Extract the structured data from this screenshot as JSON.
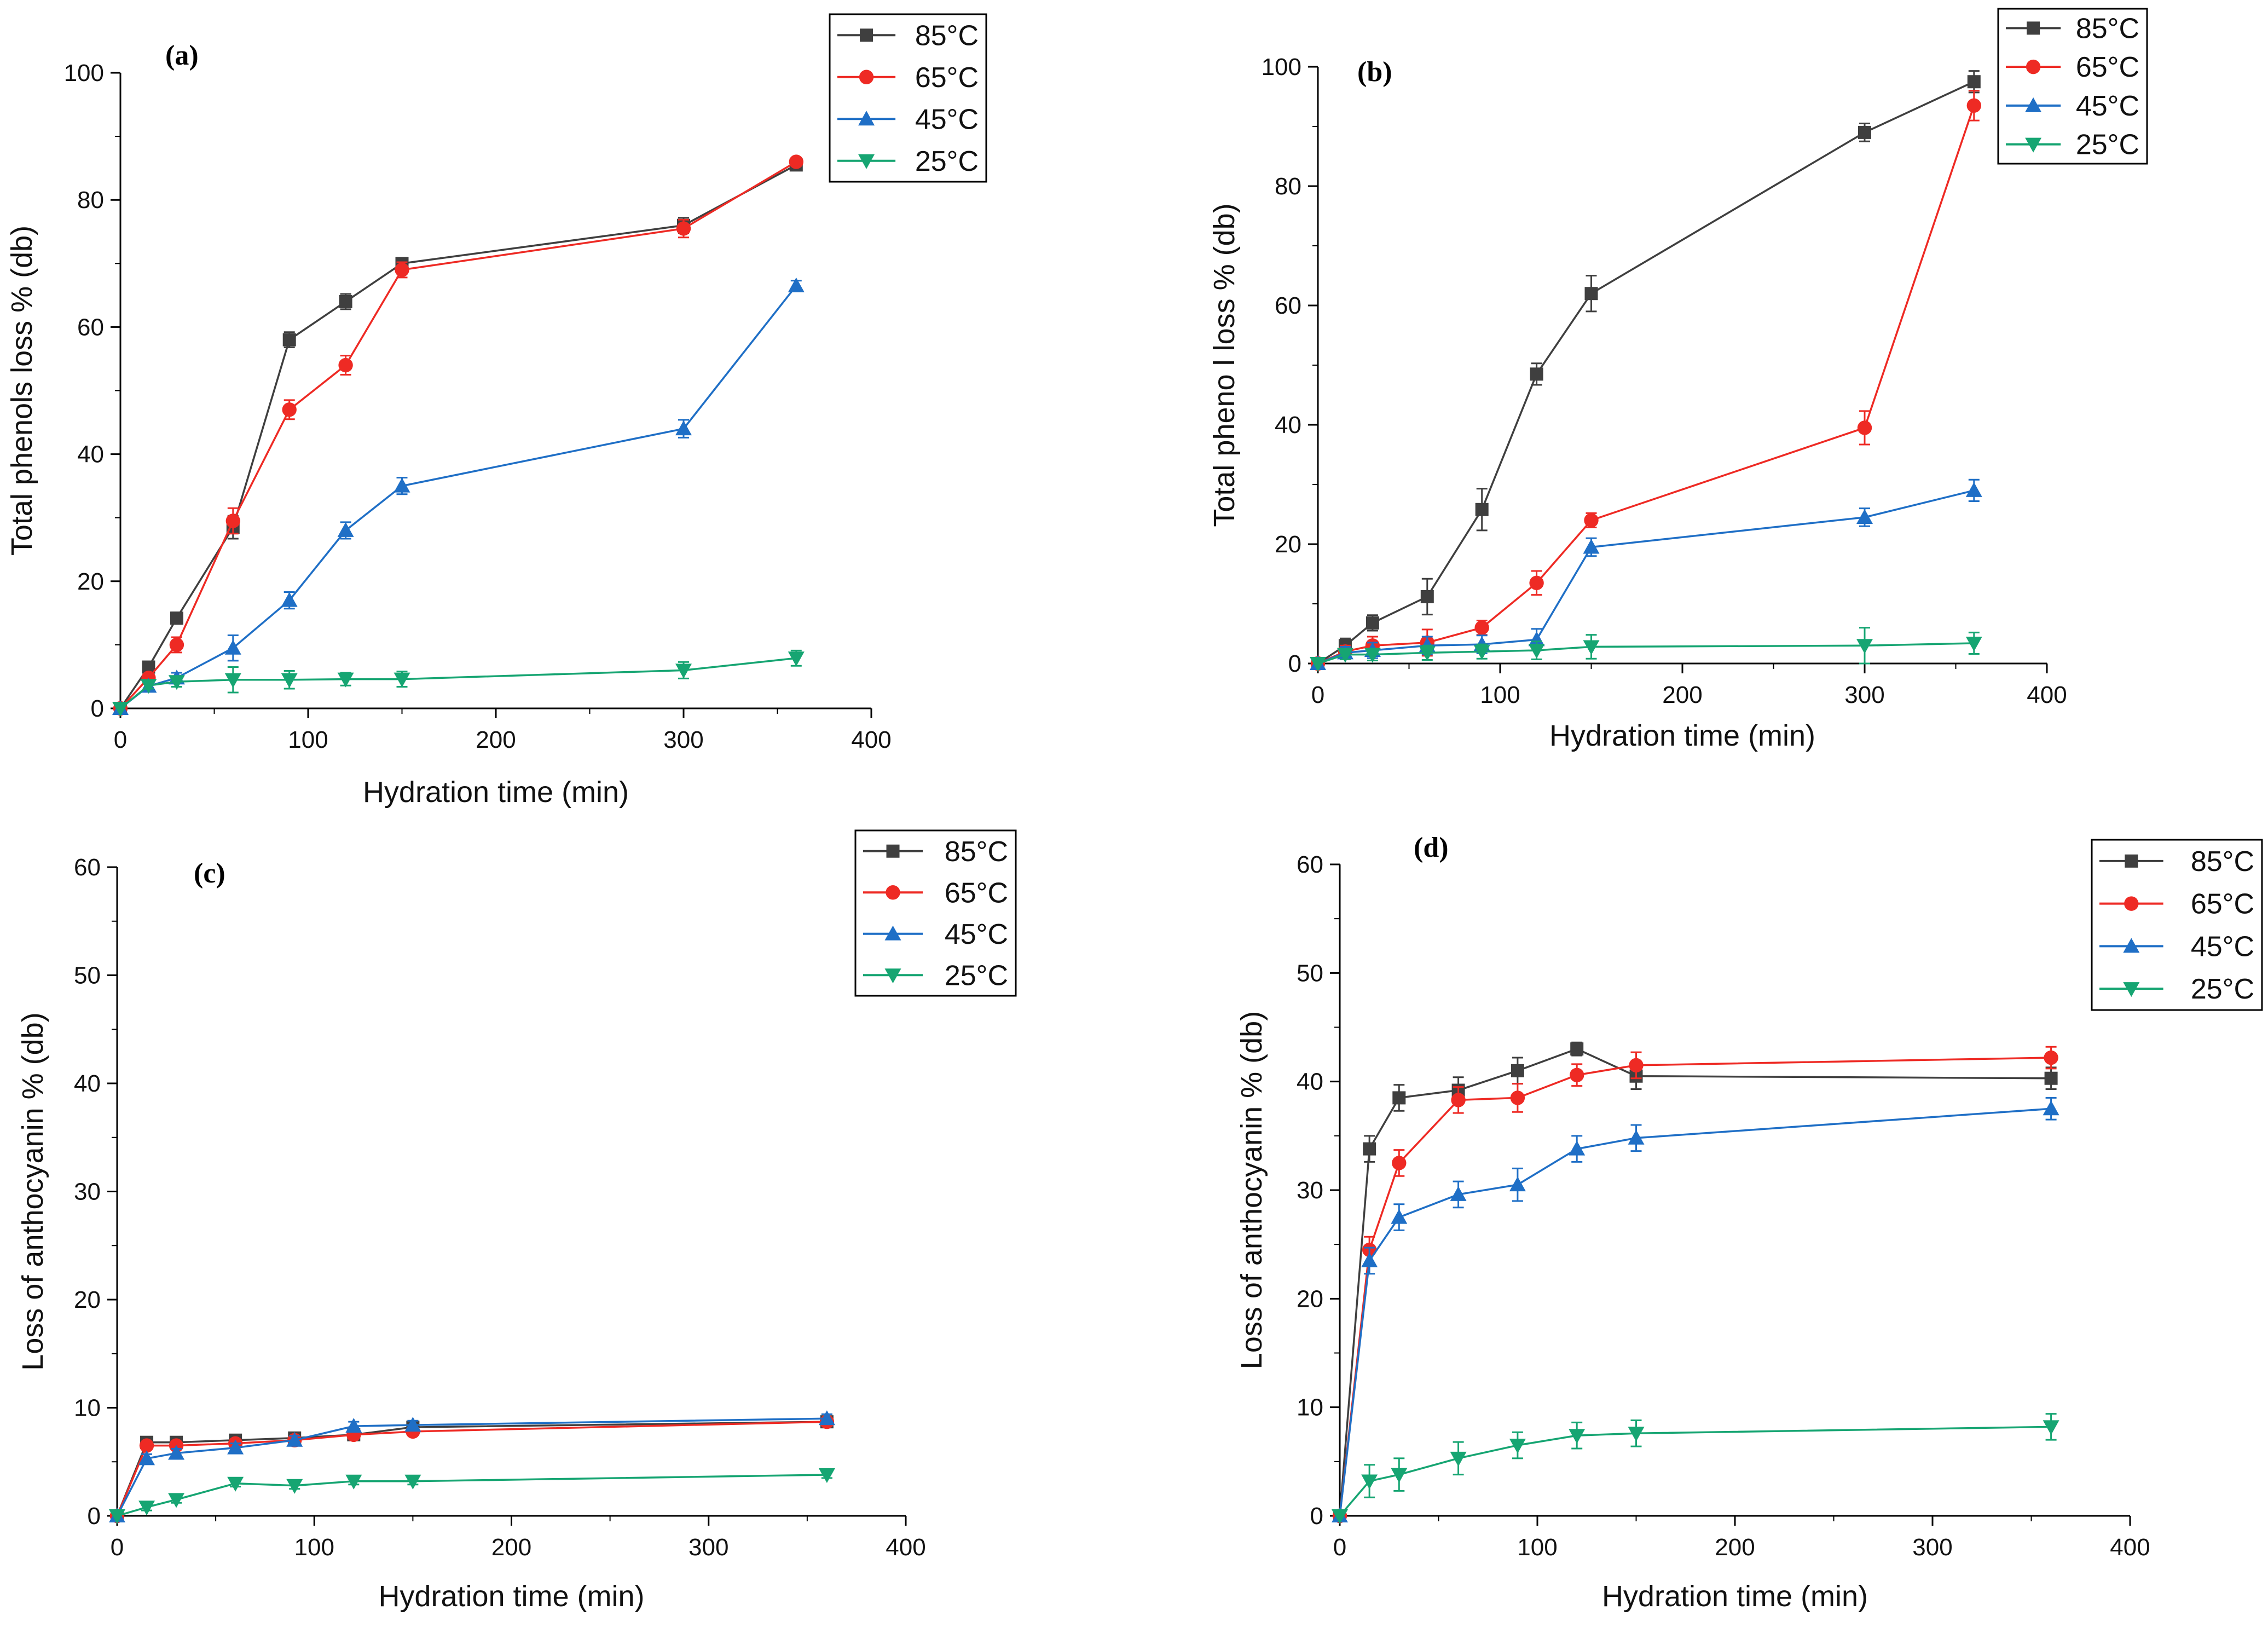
{
  "colors": {
    "85": "#3f3f3f",
    "65": "#ee2a24",
    "45": "#1f6fc6",
    "25": "#16a572",
    "axis": "#000000"
  },
  "chart_data": [
    {
      "panel": "(a)",
      "type": "line",
      "xlabel": "Hydration time (min)",
      "ylabel": "Total phenols loss % (db)",
      "xlim": [
        0,
        400
      ],
      "ylim": [
        0,
        100
      ],
      "xticks": [
        "0",
        "100",
        "200",
        "300",
        "400"
      ],
      "yticks": [
        "0",
        "20",
        "40",
        "60",
        "80",
        "100"
      ],
      "legend_position": "top-right",
      "series": [
        {
          "name": "85°C",
          "marker": "square",
          "color": "#3f3f3f",
          "x": [
            0,
            15,
            30,
            60,
            90,
            120,
            150,
            300,
            360
          ],
          "y": [
            0,
            6.5,
            14.2,
            28.5,
            58.0,
            64.0,
            70.0,
            76.0,
            85.5
          ],
          "err": [
            0,
            0.8,
            0.9,
            1.8,
            1.2,
            1.2,
            0.8,
            1.2,
            0.6
          ]
        },
        {
          "name": "65°C",
          "marker": "circle",
          "color": "#ee2a24",
          "x": [
            0,
            15,
            30,
            60,
            90,
            120,
            150,
            300,
            360
          ],
          "y": [
            0,
            4.8,
            10.0,
            29.5,
            47.0,
            54.0,
            69.0,
            75.5,
            86.0
          ],
          "err": [
            0,
            0.6,
            1.2,
            2.0,
            1.5,
            1.5,
            1.2,
            1.4,
            0.6
          ]
        },
        {
          "name": "45°C",
          "marker": "triangle-up",
          "color": "#1f6fc6",
          "x": [
            0,
            15,
            30,
            60,
            90,
            120,
            150,
            300,
            360
          ],
          "y": [
            0,
            3.5,
            4.8,
            9.5,
            17.0,
            28.0,
            35.0,
            44.0,
            66.5
          ],
          "err": [
            0,
            0.5,
            0.8,
            2.0,
            1.3,
            1.3,
            1.3,
            1.4,
            0.8
          ]
        },
        {
          "name": "25°C",
          "marker": "triangle-down",
          "color": "#16a572",
          "x": [
            0,
            15,
            30,
            60,
            90,
            120,
            150,
            300,
            360
          ],
          "y": [
            0,
            3.6,
            4.2,
            4.5,
            4.5,
            4.6,
            4.6,
            6.0,
            7.9
          ],
          "err": [
            0,
            0.5,
            0.8,
            2.0,
            1.4,
            1.0,
            1.2,
            1.3,
            1.2
          ]
        }
      ]
    },
    {
      "panel": "(b)",
      "type": "line",
      "xlabel": "Hydration time (min)",
      "ylabel": "Total pheno l loss % (db)",
      "xlim": [
        0,
        400
      ],
      "ylim": [
        0,
        100
      ],
      "xticks": [
        "0",
        "100",
        "200",
        "300",
        "400"
      ],
      "yticks": [
        "0",
        "20",
        "40",
        "60",
        "80",
        "100"
      ],
      "legend_position": "top-right",
      "series": [
        {
          "name": "85°C",
          "marker": "square",
          "color": "#3f3f3f",
          "x": [
            0,
            15,
            30,
            60,
            90,
            120,
            150,
            300,
            360
          ],
          "y": [
            0,
            3.0,
            6.8,
            11.2,
            25.8,
            48.5,
            62.0,
            89.0,
            97.5
          ],
          "err": [
            0,
            1.2,
            1.3,
            3.0,
            3.5,
            1.8,
            3.0,
            1.5,
            1.8
          ]
        },
        {
          "name": "65°C",
          "marker": "circle",
          "color": "#ee2a24",
          "x": [
            0,
            15,
            30,
            60,
            90,
            120,
            150,
            300,
            360
          ],
          "y": [
            0,
            2.0,
            3.0,
            3.5,
            6.0,
            13.5,
            24.0,
            39.5,
            93.5
          ],
          "err": [
            0,
            1.0,
            1.5,
            2.2,
            1.2,
            2.0,
            1.2,
            2.8,
            2.5
          ]
        },
        {
          "name": "45°C",
          "marker": "triangle-up",
          "color": "#1f6fc6",
          "x": [
            0,
            15,
            30,
            60,
            90,
            120,
            150,
            300,
            360
          ],
          "y": [
            0,
            1.8,
            2.2,
            3.0,
            3.2,
            4.0,
            19.5,
            24.5,
            29.0
          ],
          "err": [
            0,
            1.0,
            1.3,
            1.5,
            1.5,
            1.8,
            1.5,
            1.5,
            1.8
          ]
        },
        {
          "name": "25°C",
          "marker": "triangle-down",
          "color": "#16a572",
          "x": [
            0,
            15,
            30,
            60,
            90,
            120,
            150,
            300,
            360
          ],
          "y": [
            0,
            1.5,
            1.5,
            1.8,
            2.0,
            2.2,
            2.8,
            3.0,
            3.4
          ],
          "err": [
            0,
            0.8,
            1.0,
            1.2,
            1.2,
            1.5,
            2.0,
            3.0,
            1.8
          ]
        }
      ]
    },
    {
      "panel": "(c)",
      "type": "line",
      "xlabel": "Hydration time (min)",
      "ylabel": "Loss of anthocyanin % (db)",
      "xlim": [
        0,
        400
      ],
      "ylim": [
        0,
        60
      ],
      "xticks": [
        "0",
        "100",
        "200",
        "300",
        "400"
      ],
      "yticks": [
        "0",
        "10",
        "20",
        "30",
        "40",
        "50",
        "60"
      ],
      "legend_position": "top-right",
      "series": [
        {
          "name": "85°C",
          "marker": "square",
          "color": "#3f3f3f",
          "x": [
            0,
            15,
            30,
            60,
            90,
            120,
            150,
            360
          ],
          "y": [
            0,
            6.8,
            6.8,
            7.0,
            7.2,
            7.5,
            8.2,
            8.7
          ],
          "err": [
            0,
            0.3,
            0.3,
            0.3,
            0.3,
            0.3,
            0.3,
            0.3
          ]
        },
        {
          "name": "65°C",
          "marker": "circle",
          "color": "#ee2a24",
          "x": [
            0,
            15,
            30,
            60,
            90,
            120,
            150,
            360
          ],
          "y": [
            0,
            6.5,
            6.5,
            6.7,
            7.0,
            7.5,
            7.8,
            8.7
          ],
          "err": [
            0,
            0.3,
            0.3,
            0.3,
            0.3,
            0.3,
            0.3,
            0.3
          ]
        },
        {
          "name": "45°C",
          "marker": "triangle-up",
          "color": "#1f6fc6",
          "x": [
            0,
            15,
            30,
            60,
            90,
            120,
            150,
            360
          ],
          "y": [
            0,
            5.3,
            5.8,
            6.3,
            7.0,
            8.3,
            8.4,
            9.0
          ],
          "err": [
            0,
            0.4,
            0.4,
            0.4,
            0.4,
            0.4,
            0.4,
            0.4
          ]
        },
        {
          "name": "25°C",
          "marker": "triangle-down",
          "color": "#16a572",
          "x": [
            0,
            15,
            30,
            60,
            90,
            120,
            150,
            360
          ],
          "y": [
            0,
            0.8,
            1.5,
            3.0,
            2.8,
            3.2,
            3.2,
            3.8
          ],
          "err": [
            0,
            0.3,
            0.3,
            0.3,
            0.3,
            0.3,
            0.3,
            0.3
          ]
        }
      ]
    },
    {
      "panel": "(d)",
      "type": "line",
      "xlabel": "Hydration time (min)",
      "ylabel": "Loss of anthocyanin % (db)",
      "xlim": [
        0,
        400
      ],
      "ylim": [
        0,
        60
      ],
      "xticks": [
        "0",
        "100",
        "200",
        "300",
        "400"
      ],
      "yticks": [
        "0",
        "10",
        "20",
        "30",
        "40",
        "50",
        "60"
      ],
      "legend_position": "top-right",
      "series": [
        {
          "name": "85°C",
          "marker": "square",
          "color": "#3f3f3f",
          "x": [
            0,
            15,
            30,
            60,
            90,
            120,
            150,
            360
          ],
          "y": [
            0,
            33.8,
            38.5,
            39.2,
            41.0,
            43.0,
            40.5,
            40.3
          ],
          "err": [
            0,
            1.2,
            1.2,
            1.2,
            1.2,
            0.6,
            1.2,
            1.0
          ]
        },
        {
          "name": "65°C",
          "marker": "circle",
          "color": "#ee2a24",
          "x": [
            0,
            15,
            30,
            60,
            90,
            120,
            150,
            360
          ],
          "y": [
            0,
            24.5,
            32.5,
            38.3,
            38.5,
            40.6,
            41.5,
            42.2
          ],
          "err": [
            0,
            1.2,
            1.2,
            1.2,
            1.3,
            1.0,
            1.2,
            1.0
          ]
        },
        {
          "name": "45°C",
          "marker": "triangle-up",
          "color": "#1f6fc6",
          "x": [
            0,
            15,
            30,
            60,
            90,
            120,
            150,
            360
          ],
          "y": [
            0,
            23.5,
            27.5,
            29.6,
            30.5,
            33.8,
            34.8,
            37.5
          ],
          "err": [
            0,
            1.2,
            1.2,
            1.2,
            1.5,
            1.2,
            1.2,
            1.0
          ]
        },
        {
          "name": "25°C",
          "marker": "triangle-down",
          "color": "#16a572",
          "x": [
            0,
            15,
            30,
            60,
            90,
            120,
            150,
            360
          ],
          "y": [
            0,
            3.2,
            3.8,
            5.3,
            6.5,
            7.4,
            7.6,
            8.2
          ],
          "err": [
            0,
            1.5,
            1.5,
            1.5,
            1.2,
            1.2,
            1.2,
            1.2
          ]
        }
      ]
    }
  ]
}
